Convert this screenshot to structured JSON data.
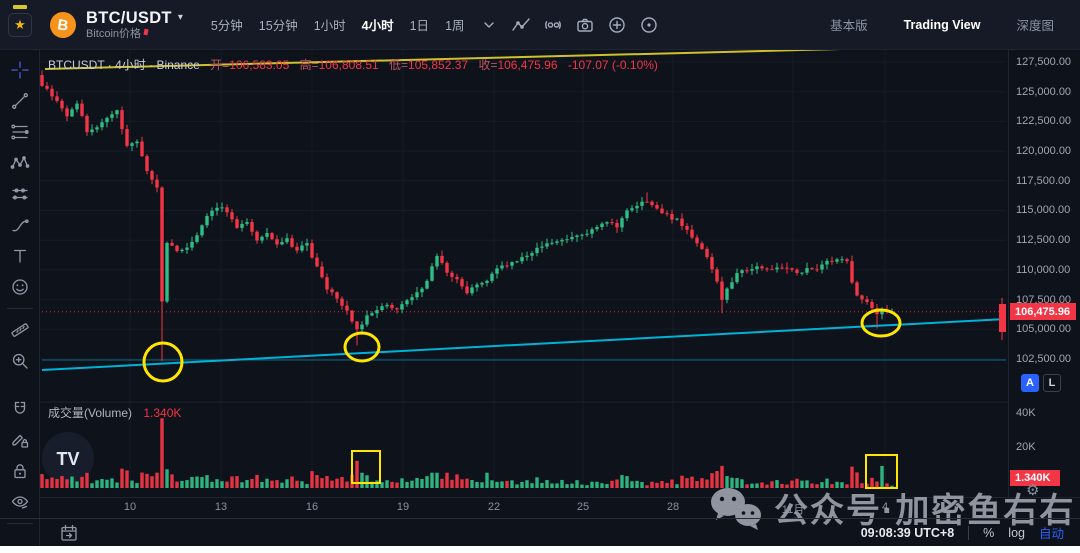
{
  "header": {
    "symbol_title": "BTC/USDT",
    "caret": "▾",
    "symbol_subtitle": "Bitcoin价格",
    "star": "★",
    "coin_letter": "B",
    "timeframes": [
      "5分钟",
      "15分钟",
      "1小时",
      "4小时",
      "1日",
      "1周"
    ],
    "active_timeframe": "4小时",
    "right_tabs": [
      "基本版",
      "Trading View",
      "深度图"
    ],
    "active_right_tab": "Trading View"
  },
  "legend": {
    "series": "BTCUSDT · 4小时 · Binance",
    "o_label": "开=",
    "o_value": "106,583.05",
    "h_label": "高=",
    "h_value": "106,808.51",
    "l_label": "低=",
    "l_value": "105,852.37",
    "c_label": "收=",
    "c_value": "106,475.96",
    "change": "-107.07 (-0.10%)"
  },
  "volume_legend": {
    "label": "成交量(Volume)",
    "value": "1.340K"
  },
  "price_axis": {
    "price_label": "106,475.96",
    "volume_label": "1.340K",
    "buttons": {
      "a": "A",
      "l": "L"
    }
  },
  "bottom_bar": {
    "time": "09:08:39 UTC+8",
    "percent": "%",
    "log": "log",
    "auto": "自动"
  },
  "watermark": {
    "text": "公众号·加密鱼右右"
  },
  "gear": "⚙",
  "chart_data": {
    "type": "candlestick+volume",
    "symbol": "BTCUSDT",
    "interval": "4小时",
    "exchange": "Binance",
    "last_close": 106475.96,
    "ohlc": {
      "open": 106583.05,
      "high": 106808.51,
      "low": 105852.37,
      "close": 106475.96,
      "change": -107.07,
      "change_pct": -0.1
    },
    "colors": {
      "up": "#2ebd85",
      "down": "#f23645",
      "trend": "#00b2d8",
      "highlight": "#ffe600",
      "grid": "#161b27"
    },
    "layout": {
      "x0": 2,
      "dx": 5.0,
      "nCandles": 170,
      "yTop": 12,
      "pTop": 127500,
      "pricePerPx": 84.18,
      "volBase": 438,
      "pxPerK": 1.7,
      "noise": 350,
      "seed": 9,
      "candleW": 3.4,
      "plotW": 966,
      "paneSplit": 352
    },
    "price_ticks": [
      {
        "label": "127,500.00",
        "p": 127500
      },
      {
        "label": "125,000.00",
        "p": 125000
      },
      {
        "label": "122,500.00",
        "p": 122500
      },
      {
        "label": "120,000.00",
        "p": 120000
      },
      {
        "label": "117,500.00",
        "p": 117500
      },
      {
        "label": "115,000.00",
        "p": 115000
      },
      {
        "label": "112,500.00",
        "p": 112500
      },
      {
        "label": "110,000.00",
        "p": 110000
      },
      {
        "label": "107,500.00",
        "p": 107500
      },
      {
        "label": "105,000.00",
        "p": 105000
      },
      {
        "label": "102,500.00",
        "p": 102500
      }
    ],
    "volume_ticks": [
      {
        "label": "40K",
        "y": 363
      },
      {
        "label": "20K",
        "y": 397
      }
    ],
    "time_ticks": [
      {
        "label": "10",
        "x": 90
      },
      {
        "label": "13",
        "x": 181
      },
      {
        "label": "16",
        "x": 272
      },
      {
        "label": "19",
        "x": 363
      },
      {
        "label": "22",
        "x": 454
      },
      {
        "label": "25",
        "x": 543
      },
      {
        "label": "28",
        "x": 633
      },
      {
        "label": "11月",
        "x": 753
      },
      {
        "label": "4",
        "x": 845
      }
    ],
    "price_keyframes": [
      [
        -1,
        126400
      ],
      [
        0,
        125600
      ],
      [
        3,
        124300
      ],
      [
        5,
        122800
      ],
      [
        7,
        124100
      ],
      [
        9,
        121600
      ],
      [
        11,
        122000
      ],
      [
        13,
        122800
      ],
      [
        15,
        123300
      ],
      [
        17,
        120300
      ],
      [
        19,
        120700
      ],
      [
        21,
        118300
      ],
      [
        23,
        116900
      ],
      [
        24,
        107500
      ],
      [
        25,
        112200
      ],
      [
        27,
        111600
      ],
      [
        29,
        112000
      ],
      [
        31,
        112800
      ],
      [
        33,
        114400
      ],
      [
        35,
        115400
      ],
      [
        37,
        114900
      ],
      [
        39,
        113700
      ],
      [
        41,
        114100
      ],
      [
        43,
        112600
      ],
      [
        45,
        113000
      ],
      [
        47,
        112100
      ],
      [
        49,
        112500
      ],
      [
        51,
        111700
      ],
      [
        53,
        112100
      ],
      [
        55,
        110200
      ],
      [
        57,
        108400
      ],
      [
        59,
        107500
      ],
      [
        61,
        106500
      ],
      [
        63,
        104900
      ],
      [
        65,
        106000
      ],
      [
        67,
        106700
      ],
      [
        69,
        107000
      ],
      [
        71,
        106800
      ],
      [
        73,
        107400
      ],
      [
        75,
        108000
      ],
      [
        77,
        109100
      ],
      [
        79,
        111300
      ],
      [
        81,
        109900
      ],
      [
        83,
        109100
      ],
      [
        85,
        108200
      ],
      [
        87,
        108600
      ],
      [
        89,
        109100
      ],
      [
        91,
        110000
      ],
      [
        93,
        110400
      ],
      [
        95,
        110700
      ],
      [
        97,
        111200
      ],
      [
        99,
        111700
      ],
      [
        101,
        112100
      ],
      [
        103,
        112500
      ],
      [
        105,
        112700
      ],
      [
        107,
        112900
      ],
      [
        109,
        113200
      ],
      [
        111,
        113500
      ],
      [
        113,
        114000
      ],
      [
        115,
        113700
      ],
      [
        117,
        115000
      ],
      [
        119,
        115400
      ],
      [
        121,
        115800
      ],
      [
        123,
        115000
      ],
      [
        125,
        114600
      ],
      [
        127,
        114200
      ],
      [
        129,
        113300
      ],
      [
        131,
        112300
      ],
      [
        133,
        111200
      ],
      [
        135,
        109100
      ],
      [
        136,
        107500
      ],
      [
        137,
        108300
      ],
      [
        139,
        109600
      ],
      [
        141,
        110000
      ],
      [
        143,
        110400
      ],
      [
        145,
        110000
      ],
      [
        147,
        110100
      ],
      [
        149,
        110000
      ],
      [
        151,
        109800
      ],
      [
        153,
        110000
      ],
      [
        155,
        110200
      ],
      [
        157,
        110700
      ],
      [
        159,
        111000
      ],
      [
        161,
        110600
      ],
      [
        162,
        109100
      ],
      [
        163,
        107900
      ],
      [
        165,
        107300
      ],
      [
        166,
        106800
      ],
      [
        167,
        106100
      ],
      [
        168,
        106500
      ],
      [
        169,
        106300
      ],
      [
        170,
        106476
      ]
    ],
    "wick_overrides": {
      "24": {
        "low": 102300
      },
      "63": {
        "low": 103650
      },
      "121": {
        "high": 116520
      },
      "136": {
        "low": 106350
      },
      "167": {
        "low": 105060
      }
    },
    "vol_overrides": {
      "23": 9,
      "24": 41,
      "25": 11,
      "26": 8,
      "63": 16,
      "64": 9,
      "79": 9,
      "81": 9,
      "83": 8,
      "89": 9,
      "117": 7,
      "135": 10,
      "136": 13,
      "166": 6,
      "168": 13,
      "170": 1.34
    },
    "annotations": {
      "yellow_line": [
        5,
        19,
        882,
        -3
      ],
      "trend_line": [
        2,
        320,
        966,
        269
      ],
      "support_line": [
        2,
        310,
        966,
        310
      ],
      "circles": [
        {
          "cx": 123,
          "cy": 312,
          "rx": 19,
          "ry": 19
        },
        {
          "cx": 322,
          "cy": 297,
          "rx": 17,
          "ry": 14
        },
        {
          "cx": 841,
          "cy": 273,
          "rx": 19,
          "ry": 13
        }
      ],
      "rects": [
        {
          "x": 312,
          "y": 401,
          "w": 28,
          "h": 32
        },
        {
          "x": 826,
          "y": 405,
          "w": 31,
          "h": 33
        }
      ],
      "edge_candle": {
        "x": 959,
        "y": 254,
        "w": 7,
        "h": 28,
        "wx": 962,
        "wy1": 248,
        "wy2": 290
      }
    }
  }
}
